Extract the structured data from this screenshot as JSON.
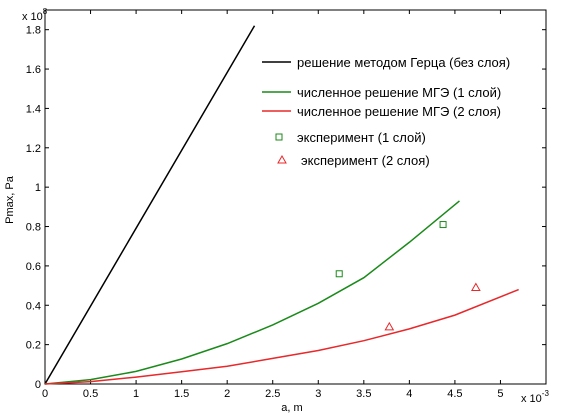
{
  "chart_data": {
    "type": "line",
    "xlabel": "a, m",
    "ylabel": "Pmax, Pa",
    "x_multiplier": "x 10",
    "x_multiplier_exp": "-3",
    "y_multiplier": "x 10",
    "y_multiplier_exp": "8",
    "xlim": [
      0,
      5.5
    ],
    "ylim": [
      0,
      1.9
    ],
    "x_ticks": [
      "0",
      "0.5",
      "1",
      "1.5",
      "2",
      "2.5",
      "3",
      "3.5",
      "4",
      "4.5",
      "5"
    ],
    "y_ticks": [
      "0",
      "0.2",
      "0.4",
      "0.6",
      "0.8",
      "1",
      "1.2",
      "1.4",
      "1.6",
      "1.8"
    ],
    "grid": false,
    "legend_position": "top-right",
    "series": [
      {
        "name": "решение методом Герца (без слоя)",
        "kind": "line",
        "color": "#000000",
        "x": [
          0,
          2.3
        ],
        "y": [
          0,
          1.82
        ]
      },
      {
        "name": "численное решение МГЭ (1 слой)",
        "kind": "line",
        "color": "#1a8a1a",
        "x": [
          0,
          0.5,
          1.0,
          1.5,
          2.0,
          2.5,
          3.0,
          3.5,
          4.0,
          4.55
        ],
        "y": [
          0,
          0.022,
          0.064,
          0.127,
          0.205,
          0.3,
          0.41,
          0.54,
          0.72,
          0.93
        ]
      },
      {
        "name": "численное решение МГЭ (2 слоя)",
        "kind": "line",
        "color": "#e8282a",
        "x": [
          0,
          0.5,
          1.0,
          1.5,
          2.0,
          2.5,
          3.0,
          3.5,
          4.0,
          4.5,
          5.2
        ],
        "y": [
          0,
          0.012,
          0.035,
          0.062,
          0.09,
          0.13,
          0.17,
          0.22,
          0.28,
          0.35,
          0.48
        ]
      },
      {
        "name": "эксперимент (1 слой)",
        "kind": "marker",
        "marker": "square",
        "color": "#1a8a1a",
        "x": [
          3.23,
          4.37
        ],
        "y": [
          0.56,
          0.81
        ]
      },
      {
        "name": "эксперимент (2 слоя)",
        "kind": "marker",
        "marker": "triangle",
        "color": "#e8282a",
        "x": [
          3.78,
          4.73
        ],
        "y": [
          0.29,
          0.49
        ]
      }
    ]
  }
}
